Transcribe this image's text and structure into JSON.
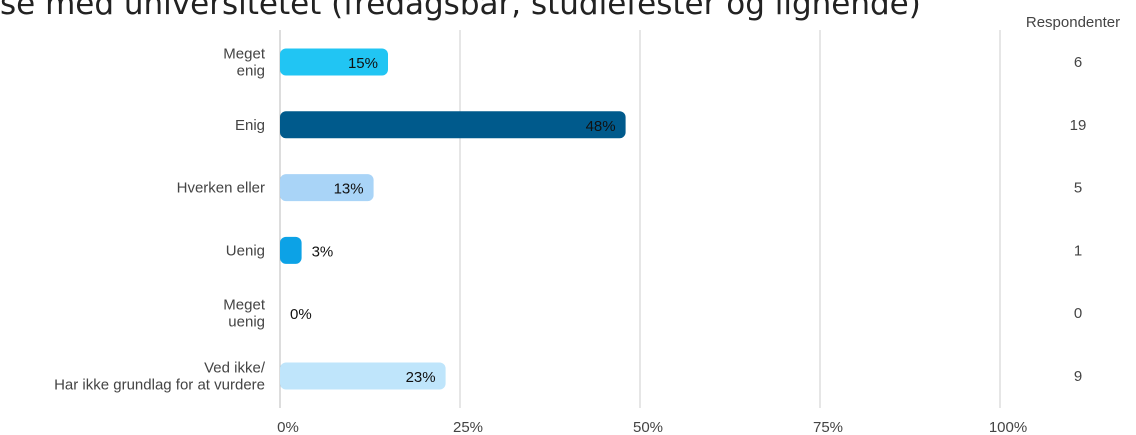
{
  "chart_data": {
    "type": "bar",
    "orientation": "horizontal",
    "title": "se med universitetet (fredagsbar, studiefester og lignende)",
    "count_header": "Respondenter",
    "categories": [
      [
        "Meget",
        "enig"
      ],
      [
        "Enig"
      ],
      [
        "Hverken eller"
      ],
      [
        "Uenig"
      ],
      [
        "Meget",
        "uenig"
      ],
      [
        "Ved ikke/",
        "Har ikke grundlag for at vurdere"
      ]
    ],
    "values": [
      15,
      48,
      13,
      3,
      0,
      23
    ],
    "value_labels": [
      "15%",
      "48%",
      "13%",
      "3%",
      "0%",
      "23%"
    ],
    "counts": [
      "6",
      "19",
      "5",
      "1",
      "0",
      "9"
    ],
    "colors": [
      "#21c5f3",
      "#005a8c",
      "#a9d4f7",
      "#0ca2e6",
      "#0ca2e6",
      "#bfe5fb"
    ],
    "xlim": [
      0,
      100
    ],
    "xticks": [
      0,
      25,
      50,
      75,
      100
    ],
    "xtick_labels": [
      "0%",
      "25%",
      "50%",
      "75%",
      "100%"
    ],
    "grid": true
  }
}
